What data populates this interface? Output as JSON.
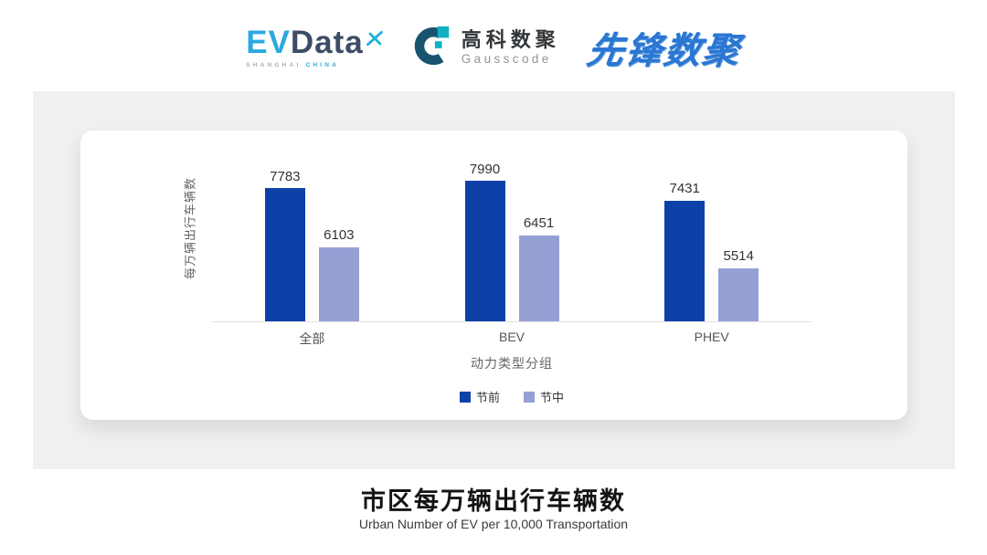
{
  "header": {
    "evdata_logo": {
      "ev": "EV",
      "data": "Data",
      "sub_left": "SHANGHAI",
      "sub_right": "CHINA"
    },
    "gausscode_logo": {
      "cn": "高科数聚",
      "en": "Gausscode"
    },
    "xianfeng_logo": {
      "text": "先锋数聚"
    }
  },
  "chart_data": {
    "type": "bar",
    "categories": [
      "全部",
      "BEV",
      "PHEV"
    ],
    "series": [
      {
        "name": "节前",
        "color": "#0d41a8",
        "values": [
          7783,
          7990,
          7431
        ]
      },
      {
        "name": "节中",
        "color": "#95a0d4",
        "values": [
          6103,
          6451,
          5514
        ]
      }
    ],
    "title": "市区每万辆出行车辆数",
    "subtitle": "Urban Number of EV per 10,000 Transportation",
    "xlabel": "动力类型分组",
    "ylabel": "每万辆出行车辆数",
    "ylim": [
      4000,
      8200
    ],
    "grid": false,
    "legend_position": "bottom",
    "value_labels": true
  },
  "colors": {
    "pre_holiday": "#0d41a8",
    "mid_holiday": "#95a0d4",
    "panel_bg": "#f0f0f0",
    "evdata_blue": "#2BA9E0",
    "evdata_dark": "#3E4D66",
    "evdata_teal": "#17b8cf",
    "gausscode_dark": "#19546f",
    "gausscode_teal": "#10b0c2",
    "xianfeng_blue": "#2b76d2"
  }
}
